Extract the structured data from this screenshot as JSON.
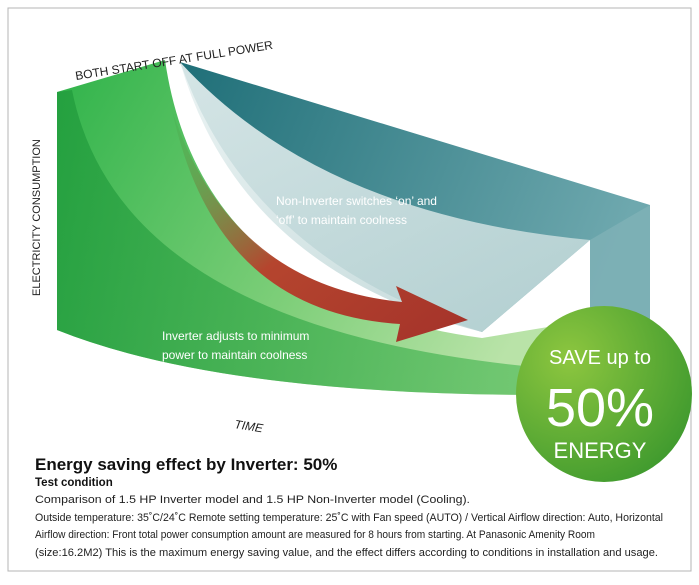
{
  "diagram": {
    "top_label": "BOTH START OFF AT FULL POWER",
    "y_axis_label": "ELECTRICITY CONSUMPTION",
    "x_axis_label": "TIME",
    "non_inverter_note": [
      "Non-Inverter switches ‘on’ and",
      "‘off’ to maintain coolness"
    ],
    "inverter_note": [
      "Inverter adjusts to minimum",
      "power to maintain coolness"
    ],
    "badge": {
      "line1": "SAVE up to",
      "line2": "50%",
      "line3": "ENERGY"
    }
  },
  "footer": {
    "title": "Energy saving effect by Inverter: 50%",
    "subtitle": "Test condition",
    "lines": [
      "Comparison of 1.5 HP Inverter model and 1.5 HP Non-Inverter model (Cooling).",
      "Outside temperature: 35˚C/24˚C Remote setting temperature: 25˚C with Fan speed (AUTO) / Vertical Airflow direction: Auto, Horizontal",
      "Airflow direction: Front total power consumption amount are measured for 8 hours from starting. At Panasonic Amenity Room",
      "(size:16.2M2) This is the maximum energy saving value, and the effect differs according to conditions in installation and usage."
    ]
  }
}
